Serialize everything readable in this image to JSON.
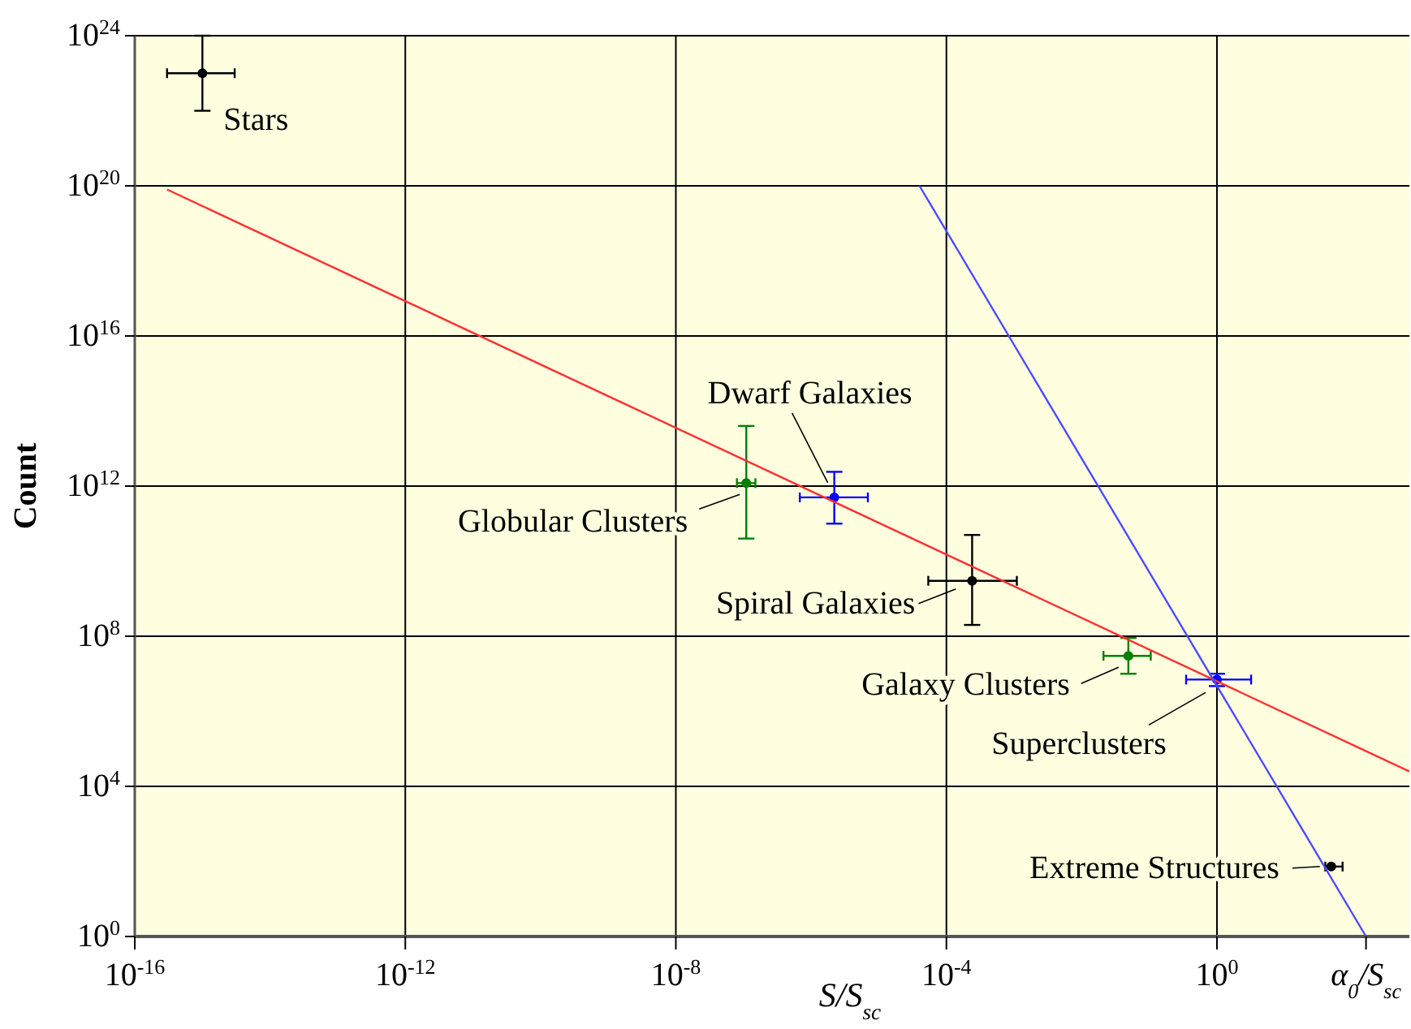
{
  "chart_data": {
    "type": "scatter",
    "xlabel": "S/S$_{sc}$",
    "ylabel": "Count",
    "log": "xy",
    "grid": true,
    "marker": "circle",
    "xlim": [
      1e-16,
      700
    ],
    "ylim": [
      1,
      1e+24
    ],
    "xticks": [
      {
        "value": 1e-16,
        "label": "10$^{-16}$"
      },
      {
        "value": 1e-12,
        "label": "10$^{-12}$"
      },
      {
        "value": 1e-08,
        "label": "10$^{-8}$"
      },
      {
        "value": 0.0001,
        "label": "10$^{-4}$"
      },
      {
        "value": 1,
        "label": "10$^{0}$"
      },
      {
        "value": 160,
        "label": null
      }
    ],
    "yticks": [
      {
        "value": 1,
        "label": "10$^{0}$"
      },
      {
        "value": 10000,
        "label": "10$^{4}$"
      },
      {
        "value": 100000000.0,
        "label": "10$^{8}$"
      },
      {
        "value": 1000000000000.0,
        "label": "10$^{12}$"
      },
      {
        "value": 1e+16,
        "label": "10$^{16}$"
      },
      {
        "value": 1e+20,
        "label": "10$^{20}$"
      },
      {
        "value": 1e+24,
        "label": "10$^{24}$"
      }
    ],
    "series": [
      {
        "x": [
          1e-15,
          1.1e-07,
          2.2e-06,
          0.00024,
          0.049,
          1,
          49
        ],
        "values": [
          1e+23,
          1200000000000.0,
          500000000000.0,
          3000000000.0,
          30000000.0,
          7000000.0,
          73
        ],
        "colors": [
          "#000000",
          "#008000",
          "#0000ff",
          "#000000",
          "#008000",
          "#0000ff",
          "#000000"
        ],
        "errors": [
          [
            1e+22,
            1e+24
          ],
          [
            40000000000.0,
            40000000000000.0
          ],
          [
            100000000000.0,
            2400000000000.0
          ],
          [
            200000000.0,
            50000000000.0
          ],
          [
            10000000.0,
            90000000.0
          ],
          [
            4700000.0,
            10000000.0
          ],
          null
        ],
        "xerrors": [
          [
            3e-16,
            3e-15
          ],
          [
            8e-08,
            1.5e-07
          ],
          [
            6.8e-07,
            6.9e-06
          ],
          [
            5.4e-05,
            0.0011
          ],
          [
            0.021,
            0.105
          ],
          [
            0.35,
            3.2
          ],
          [
            40,
            72
          ]
        ]
      },
      {
        "type": "line",
        "x": [
          3e-16,
          700
        ],
        "values": [
          8e+19,
          25000
        ],
        "color": "#ff3030",
        "marker": "none"
      },
      {
        "type": "line",
        "x": [
          4e-05,
          160
        ],
        "values": [
          1e+20,
          1
        ],
        "color": "#4a4aff",
        "marker": "none"
      }
    ],
    "annotations": [
      {
        "text": "Stars",
        "x": 1e-15,
        "y": 1e+23
      },
      {
        "text": "Globular Clusters",
        "x": 1.1e-07,
        "y": 1200000000000.0
      },
      {
        "text": "Dwarf Galaxies",
        "x": 2.2e-06,
        "y": 500000000000.0
      },
      {
        "text": "Spiral Galaxies",
        "x": 0.00024,
        "y": 3000000000.0
      },
      {
        "text": "Galaxy Clusters",
        "x": 0.049,
        "y": 30000000.0
      },
      {
        "text": "Superclusters",
        "x": 1,
        "y": 7000000.0
      },
      {
        "text": "Extreme Structures",
        "x": 49,
        "y": 73
      },
      {
        "text": "α$_{0}$/S$_{sc}$",
        "x": 160,
        "y": 1
      }
    ]
  }
}
